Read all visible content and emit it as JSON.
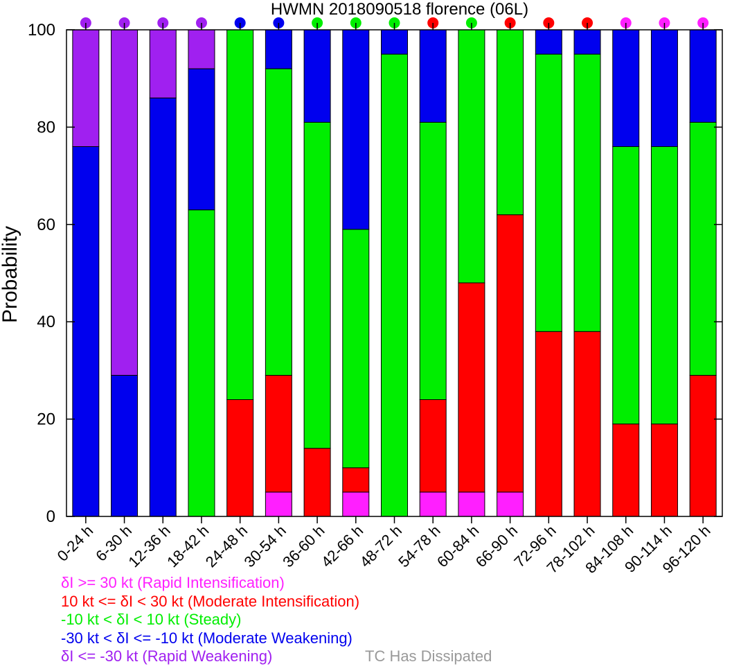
{
  "chart_data": {
    "type": "bar",
    "stacked": true,
    "title": "HWMN 2018090518 florence (06L)",
    "xlabel": "",
    "ylabel": "Probability",
    "ylim": [
      0,
      100
    ],
    "yticks": [
      0,
      20,
      40,
      60,
      80,
      100
    ],
    "categories": [
      "0-24 h",
      "6-30 h",
      "12-36 h",
      "18-42 h",
      "24-48 h",
      "30-54 h",
      "36-60 h",
      "42-66 h",
      "48-72 h",
      "54-78 h",
      "60-84 h",
      "66-90 h",
      "72-96 h",
      "78-102 h",
      "84-108 h",
      "90-114 h",
      "96-120 h"
    ],
    "series": [
      {
        "name": "δI >= 30 kt (Rapid Intensification)",
        "color": "#ff1fff",
        "values": [
          0,
          0,
          0,
          0,
          0,
          5,
          0,
          5,
          0,
          5,
          5,
          5,
          0,
          0,
          0,
          0,
          0
        ]
      },
      {
        "name": "10 kt <= δI < 30 kt (Moderate Intensification)",
        "color": "#ff0000",
        "values": [
          0,
          0,
          0,
          0,
          24,
          24,
          14,
          5,
          0,
          19,
          43,
          57,
          38,
          38,
          19,
          19,
          29
        ]
      },
      {
        "name": "-10 kt < δI < 10 kt (Steady)",
        "color": "#00ee00",
        "values": [
          0,
          0,
          0,
          63,
          76,
          63,
          67,
          49,
          95,
          57,
          52,
          38,
          57,
          57,
          57,
          57,
          52
        ]
      },
      {
        "name": "-30 kt < δI <= -10 kt (Moderate Weakening)",
        "color": "#0000ee",
        "values": [
          76,
          29,
          86,
          29,
          0,
          8,
          19,
          41,
          5,
          19,
          0,
          0,
          5,
          5,
          24,
          24,
          19
        ]
      },
      {
        "name": "δI <= -30 kt (Rapid Weakening)",
        "color": "#a020f0",
        "values": [
          24,
          71,
          14,
          8,
          0,
          0,
          0,
          0,
          0,
          0,
          0,
          0,
          0,
          0,
          0,
          0,
          0
        ]
      }
    ],
    "dot_colors": [
      "#a020f0",
      "#a020f0",
      "#a020f0",
      "#a020f0",
      "#0000ee",
      "#0000ee",
      "#00ee00",
      "#00ee00",
      "#00ee00",
      "#ff0000",
      "#00ee00",
      "#ff0000",
      "#ff0000",
      "#ff0000",
      "#ff1fff",
      "#ff1fff",
      "#ff1fff"
    ],
    "legend_placement": "bottom-left",
    "grid": false
  },
  "legend": {
    "items": [
      {
        "label": "δI >= 30 kt (Rapid Intensification)",
        "color": "#ff1fff"
      },
      {
        "label": "10 kt <= δI < 30 kt (Moderate Intensification)",
        "color": "#ff0000"
      },
      {
        "label": "-10 kt < δI < 10 kt (Steady)",
        "color": "#00ee00"
      },
      {
        "label": "-30 kt < δI <= -10 kt (Moderate Weakening)",
        "color": "#0000ee"
      },
      {
        "label": "δI <= -30 kt (Rapid Weakening)",
        "color": "#a020f0"
      }
    ],
    "dissipated_label": "TC Has Dissipated",
    "dissipated_color": "#999999"
  }
}
